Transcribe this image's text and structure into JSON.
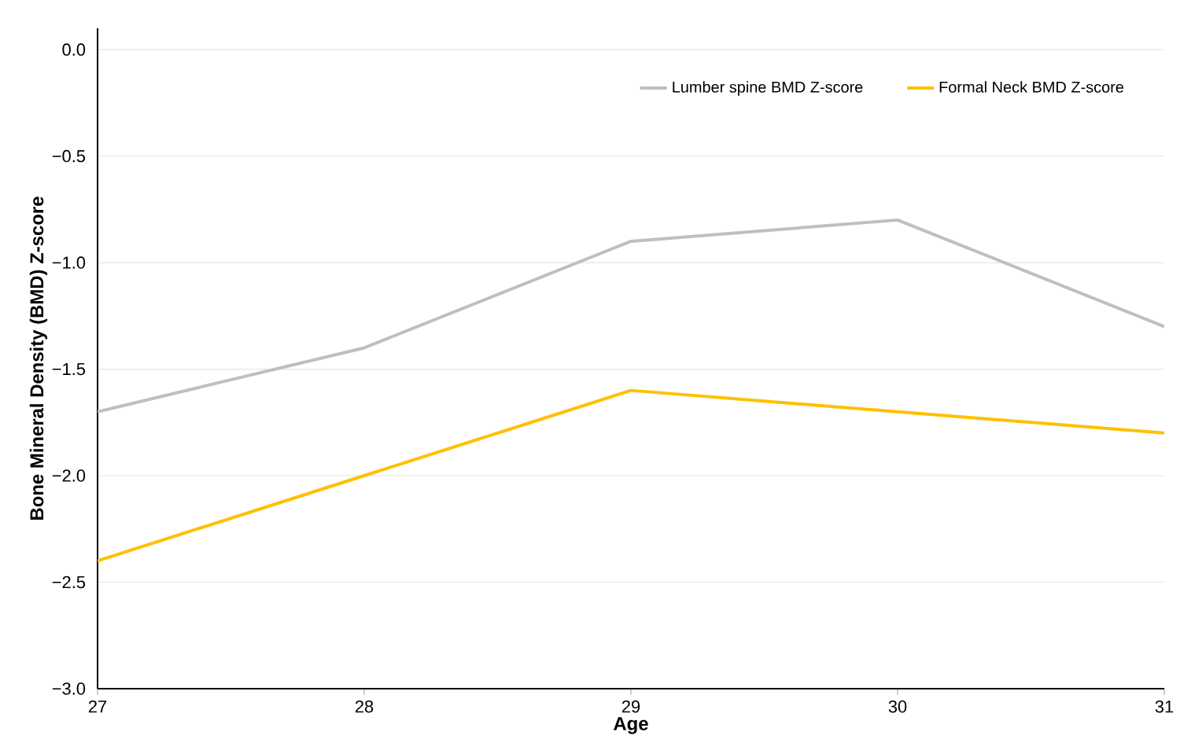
{
  "chart_data": {
    "type": "line",
    "xlabel": "Age",
    "ylabel": "Bone Mineral Density (BMD) Z-score",
    "x": [
      27,
      28,
      29,
      30,
      31
    ],
    "series": [
      {
        "name": "Lumber spine BMD Z-score",
        "color": "#bfbfbf",
        "values": [
          -1.7,
          -1.4,
          -0.9,
          -0.8,
          -1.3
        ]
      },
      {
        "name": "Formal Neck BMD Z-score",
        "color": "#ffc000",
        "values": [
          -2.4,
          -2.0,
          -1.6,
          -1.7,
          -1.8
        ]
      }
    ],
    "xlim": [
      27,
      31
    ],
    "xticks": [
      27,
      28,
      29,
      30,
      31
    ],
    "ylim": [
      -3,
      0.1
    ],
    "yticks": [
      {
        "value": -3,
        "label": "−3.0"
      },
      {
        "value": -2.5,
        "label": "−2.5"
      },
      {
        "value": -2,
        "label": "−2.0"
      },
      {
        "value": -1.5,
        "label": "−1.5"
      },
      {
        "value": -1,
        "label": "−1.0"
      },
      {
        "value": -0.5,
        "label": "−0.5"
      },
      {
        "value": 0,
        "label": "0.0"
      }
    ],
    "grid": "y",
    "legend": "top right",
    "marker": "none",
    "line_style": "solid"
  }
}
